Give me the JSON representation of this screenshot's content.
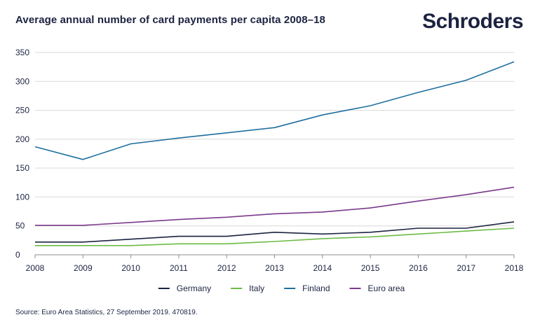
{
  "header": {
    "title": "Average annual number of card payments per capita 2008–18",
    "logo_text": "Schroders"
  },
  "footer": {
    "source": "Source: Euro Area Statistics, 27 September 2019. 470819."
  },
  "colors": {
    "text": "#1c2341",
    "grid": "#d9d9d9",
    "axis": "#8c8c8c"
  },
  "chart_data": {
    "type": "line",
    "title": "Average annual number of card payments per capita 2008–18",
    "xlabel": "",
    "ylabel": "",
    "x": [
      2008,
      2009,
      2010,
      2011,
      2012,
      2013,
      2014,
      2015,
      2016,
      2017,
      2018
    ],
    "x_tick_labels": [
      "2008",
      "2009",
      "2010",
      "2011",
      "2012",
      "2013",
      "2014",
      "2015",
      "2016",
      "2017",
      "2018"
    ],
    "ylim": [
      0,
      350
    ],
    "y_ticks": [
      0,
      50,
      100,
      150,
      200,
      250,
      300,
      350
    ],
    "grid": true,
    "legend_position": "bottom",
    "series": [
      {
        "name": "Germany",
        "color": "#1c2341",
        "values": [
          22,
          22,
          27,
          32,
          32,
          39,
          36,
          39,
          46,
          46,
          57
        ]
      },
      {
        "name": "Italy",
        "color": "#6cbb45",
        "values": [
          16,
          16,
          16,
          19,
          19,
          23,
          28,
          31,
          36,
          41,
          46
        ]
      },
      {
        "name": "Finland",
        "color": "#1f6f9f",
        "values": [
          187,
          165,
          192,
          202,
          211,
          220,
          242,
          258,
          281,
          302,
          334
        ]
      },
      {
        "name": "Euro area",
        "color": "#7a3a8c",
        "values": [
          51,
          51,
          56,
          61,
          65,
          71,
          74,
          81,
          93,
          104,
          117
        ]
      }
    ]
  }
}
